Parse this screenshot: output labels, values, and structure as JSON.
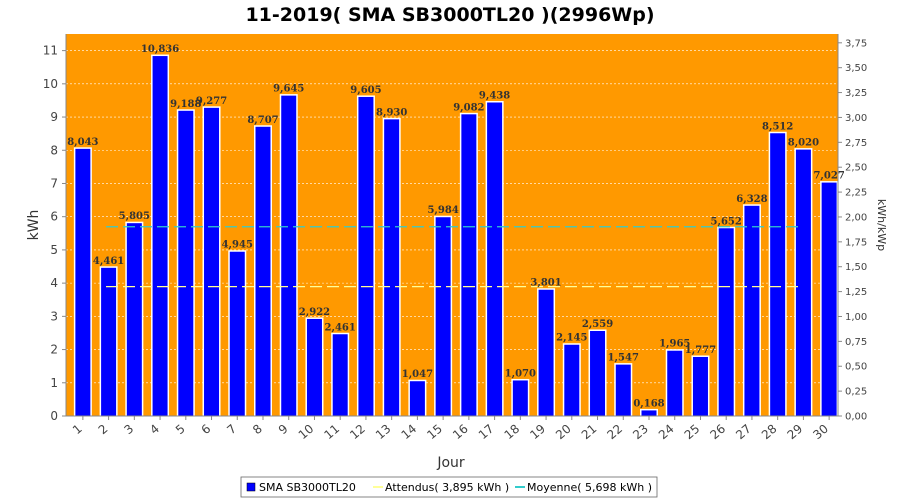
{
  "chart_data": {
    "type": "bar",
    "title": "11-2019( SMA SB3000TL20 )(2996Wp)",
    "xlabel": "Jour",
    "ylabel": "kWh",
    "y2label": "kWh/kWp",
    "ylim": [
      0,
      11.5
    ],
    "y_ticks": [
      "0",
      "1",
      "2",
      "3",
      "4",
      "5",
      "6",
      "7",
      "8",
      "9",
      "10",
      "11"
    ],
    "y2_ticks": [
      "0,00",
      "0,25",
      "0,50",
      "0,75",
      "1,00",
      "1,25",
      "1,50",
      "1,75",
      "2,00",
      "2,25",
      "2,50",
      "2,75",
      "3,00",
      "3,25",
      "3,50",
      "3,75"
    ],
    "categories": [
      "1",
      "2",
      "3",
      "4",
      "5",
      "6",
      "7",
      "8",
      "9",
      "10",
      "11",
      "12",
      "13",
      "14",
      "15",
      "16",
      "17",
      "18",
      "19",
      "20",
      "21",
      "22",
      "23",
      "24",
      "25",
      "26",
      "27",
      "28",
      "29",
      "30"
    ],
    "series": [
      {
        "name": "SMA SB3000TL20",
        "values": [
          8.043,
          4.461,
          5.805,
          10.836,
          9.188,
          9.277,
          4.945,
          8.707,
          9.645,
          2.922,
          2.461,
          9.605,
          8.93,
          1.047,
          5.984,
          9.082,
          9.438,
          1.07,
          3.801,
          2.145,
          2.559,
          1.547,
          0.168,
          1.965,
          1.777,
          5.652,
          6.328,
          8.512,
          8.02,
          7.027
        ],
        "labels": [
          "8,043",
          "4,461",
          "5,805",
          "10,836",
          "9,188",
          "9,277",
          "4,945",
          "8,707",
          "9,645",
          "2,922",
          "2,461",
          "9,605",
          "8,930",
          "1,047",
          "5,984",
          "9,082",
          "9,438",
          "1,070",
          "3,801",
          "2,145",
          "2,559",
          "1,547",
          "0,168",
          "1,965",
          "1,777",
          "5,652",
          "6,328",
          "8,512",
          "8,020",
          "7,027"
        ],
        "color": "#0000ff"
      }
    ],
    "reference_lines": [
      {
        "name": "Attendus",
        "value": 3.895,
        "color": "#ffff99"
      },
      {
        "name": "Moyenne",
        "value": 5.698,
        "color": "#33cccc"
      }
    ],
    "legend": {
      "position": "bottom",
      "entries": [
        {
          "label": "SMA SB3000TL20",
          "color": "#0000ff"
        },
        {
          "label": "Attendus( 3,895 kWh )",
          "color": "#ffff99"
        },
        {
          "label": "Moyenne( 5,698 kWh )",
          "color": "#33cccc"
        }
      ]
    },
    "plot_background": "#ff9900",
    "grid": true
  }
}
